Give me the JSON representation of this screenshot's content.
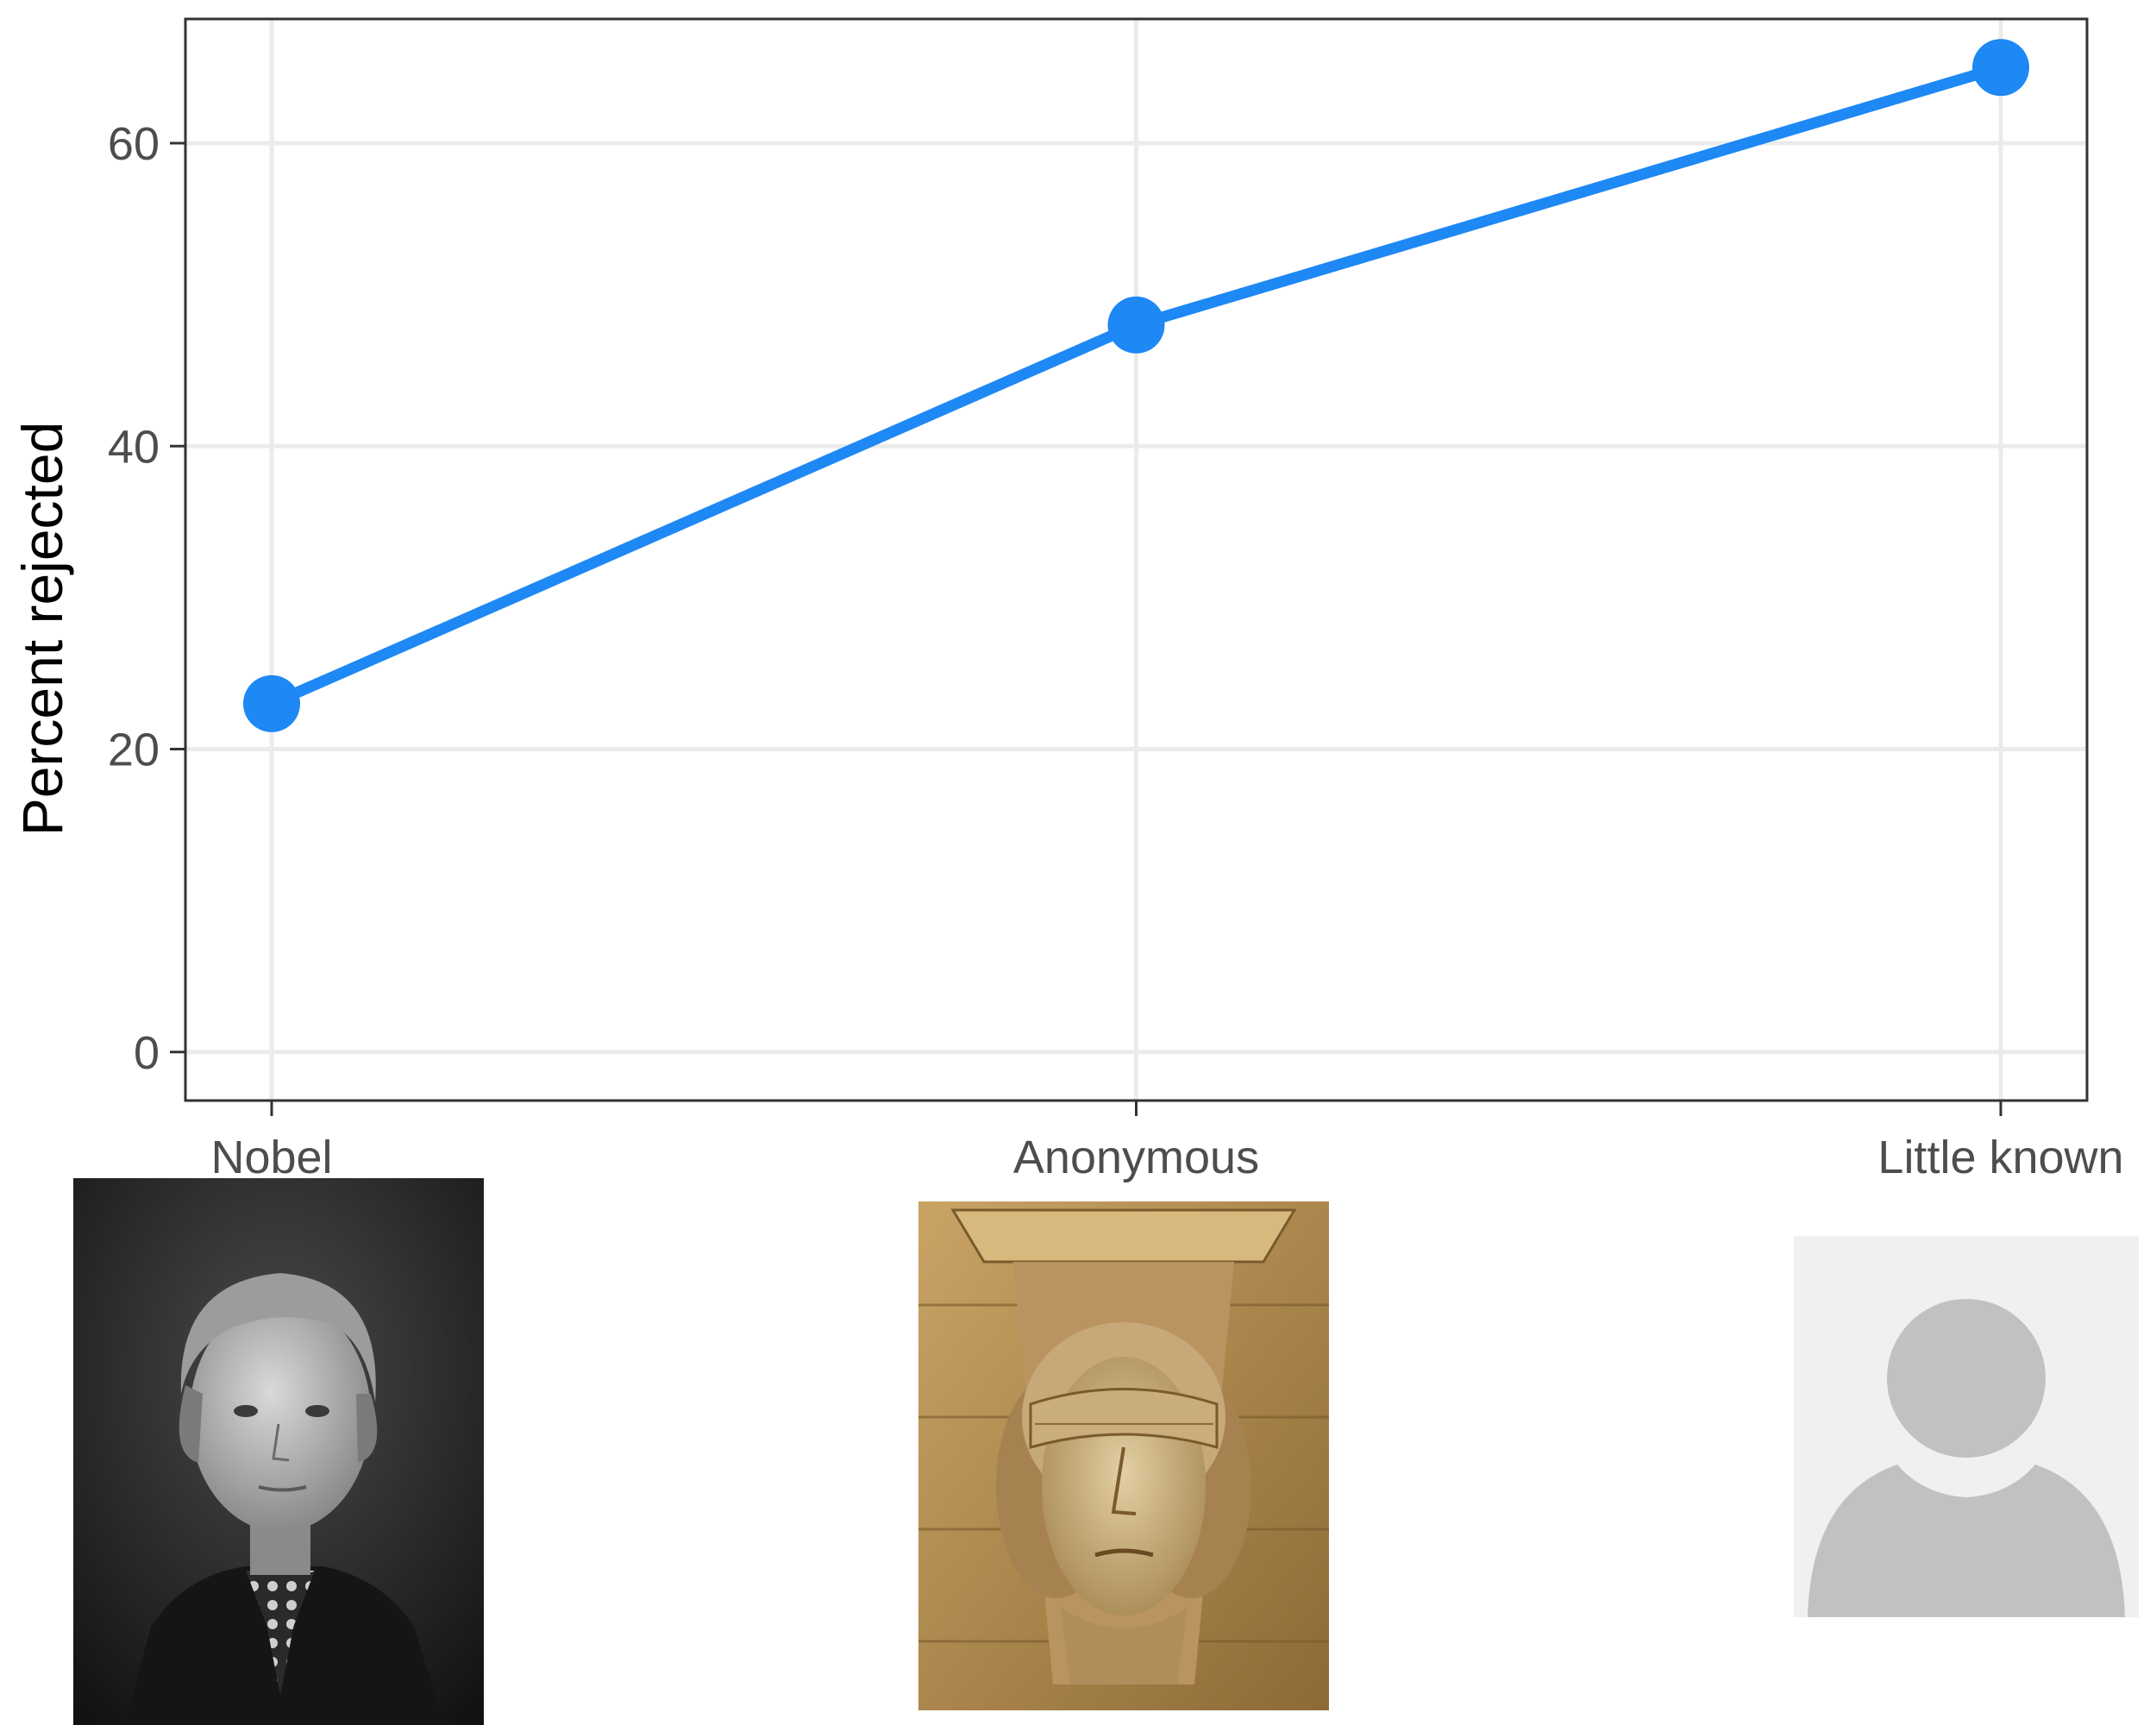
{
  "chart_data": {
    "type": "line",
    "categories": [
      "Nobel",
      "Anonymous",
      "Little known"
    ],
    "values": [
      23,
      48,
      65
    ],
    "title": "",
    "xlabel": "",
    "ylabel": "Percent rejected",
    "ylim": [
      -3.2,
      68.2
    ],
    "yticks": [
      "0",
      "20",
      "40",
      "60"
    ],
    "grid": true,
    "line_color": "#1E88F5",
    "grid_color": "#EBEBEB",
    "frame_color": "#333333"
  },
  "images": [
    {
      "category": "Nobel",
      "icon": "black-and-white-portrait-photo"
    },
    {
      "category": "Anonymous",
      "icon": "blindfolded-stone-justice-head-photo"
    },
    {
      "category": "Little known",
      "icon": "default-user-avatar-icon"
    }
  ]
}
